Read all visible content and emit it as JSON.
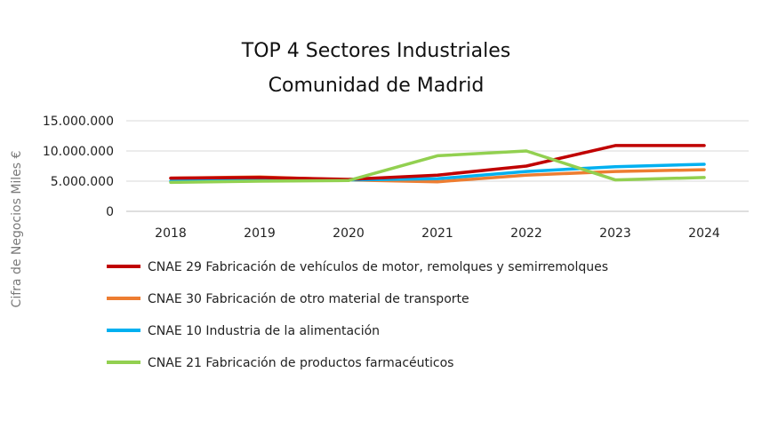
{
  "chart_data": {
    "type": "line",
    "title_lines": [
      "TOP 4 Sectores Industriales",
      "Comunidad de Madrid"
    ],
    "ylabel": "Cifra de Negocios Miles €",
    "xlabel": "",
    "x": [
      "2018",
      "2019",
      "2020",
      "2021",
      "2022",
      "2023",
      "2024"
    ],
    "ylim": [
      0,
      15000000
    ],
    "yticks": [
      0,
      5000000,
      10000000,
      15000000
    ],
    "ytick_labels": [
      "0",
      "5.000.000",
      "10.000.000",
      "15.000.000"
    ],
    "grid": true,
    "legend_position": "bottom",
    "series": [
      {
        "name": "CNAE 29 Fabricación de vehículos de motor, remolques y semirremolques",
        "color": "#c00000",
        "values": [
          5500000,
          5600000,
          5300000,
          6000000,
          7500000,
          10900000,
          10900000
        ]
      },
      {
        "name": "CNAE 30 Fabricación de otro material de transporte",
        "color": "#ed7d31",
        "values": [
          5500000,
          5700000,
          5200000,
          4900000,
          6000000,
          6600000,
          6900000
        ]
      },
      {
        "name": "CNAE 10 Industria de la alimentación",
        "color": "#00b0f0",
        "values": [
          5000000,
          5200000,
          5200000,
          5400000,
          6600000,
          7400000,
          7800000
        ]
      },
      {
        "name": "CNAE 21 Fabricación de productos farmacéuticos",
        "color": "#92d050",
        "values": [
          4800000,
          5000000,
          5100000,
          9200000,
          10000000,
          5200000,
          5600000
        ]
      }
    ]
  }
}
